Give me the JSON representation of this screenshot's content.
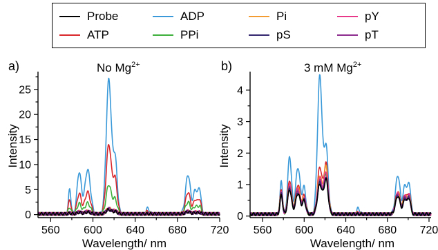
{
  "legend": [
    {
      "name": "Probe",
      "color": "#000000"
    },
    {
      "name": "ADP",
      "color": "#3a9ad9"
    },
    {
      "name": "Pi",
      "color": "#f39c32"
    },
    {
      "name": "pY",
      "color": "#e8388a"
    },
    {
      "name": "ATP",
      "color": "#d9262b"
    },
    {
      "name": "PPi",
      "color": "#3cae3a"
    },
    {
      "name": "pS",
      "color": "#33256e"
    },
    {
      "name": "pT",
      "color": "#8e2b8e"
    }
  ],
  "chart_data": [
    {
      "type": "line",
      "panel": "a)",
      "title_main": "No Mg",
      "title_sup": "2+",
      "xlabel": "Wavelength/ nm",
      "ylabel": "Intensity",
      "xlim": [
        548,
        720
      ],
      "ylim": [
        -0.6,
        28
      ],
      "xticks": [
        560,
        600,
        640,
        680,
        720
      ],
      "yticks": [
        0,
        5,
        10,
        15,
        20,
        25
      ],
      "baseline": 0.15,
      "peaks_x": [
        578,
        587,
        595,
        615,
        621,
        652,
        690,
        697,
        701
      ],
      "peaks_w": [
        1.2,
        2.0,
        2.6,
        2.4,
        2.0,
        1.5,
        2.3,
        1.8,
        1.4
      ],
      "series": [
        {
          "name": "ADP",
          "color": "#3a9ad9",
          "peaks_y": [
            5,
            8.5,
            9,
            27,
            11,
            1.3,
            8,
            5,
            5
          ]
        },
        {
          "name": "ATP",
          "color": "#d9262b",
          "peaks_y": [
            3,
            4.2,
            4.5,
            14,
            7,
            0.7,
            4.5,
            3,
            3
          ]
        },
        {
          "name": "PPi",
          "color": "#3cae3a",
          "peaks_y": [
            1.5,
            2.2,
            2.3,
            6,
            3,
            0.4,
            2.5,
            1.7,
            1.7
          ]
        },
        {
          "name": "Pi",
          "color": "#f39c32",
          "peaks_y": [
            0.4,
            0.6,
            0.7,
            1.3,
            0.8,
            0.2,
            0.7,
            0.5,
            0.5
          ]
        },
        {
          "name": "pY",
          "color": "#e8388a",
          "peaks_y": [
            0.4,
            0.6,
            0.7,
            1.2,
            0.8,
            0.2,
            0.7,
            0.5,
            0.5
          ]
        },
        {
          "name": "pS",
          "color": "#33256e",
          "peaks_y": [
            0.3,
            0.5,
            0.6,
            1.1,
            0.7,
            0.2,
            0.6,
            0.4,
            0.4
          ]
        },
        {
          "name": "pT",
          "color": "#8e2b8e",
          "peaks_y": [
            0.35,
            0.55,
            0.65,
            1.15,
            0.75,
            0.2,
            0.65,
            0.45,
            0.45
          ]
        },
        {
          "name": "Probe",
          "color": "#000000",
          "peaks_y": [
            0.3,
            0.45,
            0.5,
            1.0,
            0.6,
            0.15,
            0.55,
            0.4,
            0.4
          ]
        }
      ]
    },
    {
      "type": "line",
      "panel": "b)",
      "title_main": "3 mM Mg",
      "title_sup": "2+",
      "xlabel": "Wavelength/ nm",
      "ylabel": "Intensity",
      "xlim": [
        548,
        722
      ],
      "ylim": [
        -0.05,
        4.5
      ],
      "xticks": [
        560,
        600,
        640,
        680,
        720
      ],
      "yticks": [
        0,
        1,
        2,
        3,
        4
      ],
      "baseline": 0.06,
      "peaks_x": [
        578,
        586,
        594,
        600,
        615,
        621,
        652,
        690,
        697,
        701
      ],
      "peaks_w": [
        1.2,
        1.8,
        2.2,
        1.6,
        2.2,
        2.0,
        1.5,
        2.2,
        1.8,
        1.4
      ],
      "series": [
        {
          "name": "ADP",
          "color": "#3a9ad9",
          "peaks_y": [
            1.1,
            1.9,
            1.55,
            0.9,
            4.45,
            2.2,
            0.25,
            1.3,
            1.0,
            1.0
          ]
        },
        {
          "name": "ATP",
          "color": "#d9262b",
          "peaks_y": [
            0.85,
            1.15,
            1.0,
            0.65,
            1.55,
            1.65,
            0.12,
            0.8,
            0.7,
            0.7
          ]
        },
        {
          "name": "Pi",
          "color": "#f39c32",
          "peaks_y": [
            0.8,
            1.05,
            0.9,
            0.6,
            1.3,
            1.55,
            0.1,
            0.75,
            0.65,
            0.65
          ]
        },
        {
          "name": "PPi",
          "color": "#3cae3a",
          "peaks_y": [
            0.75,
            0.95,
            0.8,
            0.55,
            1.15,
            1.3,
            0.08,
            0.7,
            0.6,
            0.6
          ]
        },
        {
          "name": "pY",
          "color": "#e8388a",
          "peaks_y": [
            0.78,
            0.98,
            0.85,
            0.58,
            1.2,
            1.4,
            0.08,
            0.72,
            0.62,
            0.62
          ]
        },
        {
          "name": "pT",
          "color": "#8e2b8e",
          "peaks_y": [
            0.72,
            0.9,
            0.78,
            0.52,
            1.1,
            1.25,
            0.07,
            0.68,
            0.58,
            0.58
          ]
        },
        {
          "name": "pS",
          "color": "#33256e",
          "peaks_y": [
            0.7,
            0.88,
            0.75,
            0.5,
            1.05,
            1.2,
            0.07,
            0.66,
            0.56,
            0.56
          ]
        },
        {
          "name": "Probe",
          "color": "#000000",
          "peaks_y": [
            0.68,
            0.85,
            0.72,
            0.48,
            1.0,
            1.15,
            0.06,
            0.64,
            0.54,
            0.54
          ]
        }
      ]
    }
  ]
}
